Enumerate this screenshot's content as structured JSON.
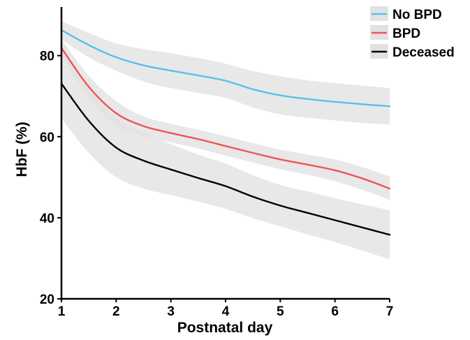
{
  "chart_data": {
    "type": "line",
    "title": "",
    "xlabel": "Postnatal day",
    "ylabel": "HbF (%)",
    "xlim": [
      1,
      7
    ],
    "ylim": [
      20,
      92
    ],
    "x_ticks": [
      1,
      2,
      3,
      4,
      5,
      6,
      7
    ],
    "y_ticks": [
      20,
      40,
      60,
      80
    ],
    "grid": false,
    "legend_position": "top-right",
    "x": [
      1,
      1.5,
      2,
      2.5,
      3,
      3.5,
      4,
      4.5,
      5,
      5.5,
      6,
      6.5,
      7
    ],
    "series": [
      {
        "name": "No BPD",
        "color": "#56C1EA",
        "values": [
          86.3,
          82.6,
          79.6,
          77.6,
          76.3,
          75.1,
          73.8,
          71.7,
          70.2,
          69.3,
          68.6,
          68.0,
          67.5
        ],
        "ci_lower": [
          84.0,
          79.6,
          76.3,
          73.6,
          72.0,
          70.8,
          69.6,
          67.2,
          65.5,
          64.7,
          64.0,
          63.4,
          63.0
        ],
        "ci_upper": [
          88.5,
          85.6,
          83.0,
          81.6,
          80.6,
          79.4,
          78.0,
          76.2,
          74.9,
          73.9,
          73.2,
          72.6,
          72.0
        ]
      },
      {
        "name": "BPD",
        "color": "#F05454",
        "values": [
          81.9,
          72.3,
          65.8,
          62.6,
          60.9,
          59.4,
          57.7,
          56.0,
          54.4,
          53.1,
          51.7,
          49.7,
          47.2
        ],
        "ci_lower": [
          79.8,
          69.6,
          62.8,
          60.2,
          58.6,
          57.1,
          55.3,
          53.6,
          52.0,
          50.6,
          49.0,
          46.9,
          44.4
        ],
        "ci_upper": [
          84.0,
          75.0,
          68.8,
          65.0,
          63.2,
          61.7,
          60.1,
          58.4,
          56.8,
          55.6,
          54.4,
          52.5,
          50.2
        ]
      },
      {
        "name": "Deceased",
        "color": "#000000",
        "values": [
          73.1,
          63.9,
          57.3,
          54.1,
          51.9,
          49.8,
          47.8,
          45.2,
          43.0,
          41.2,
          39.4,
          37.6,
          35.8
        ],
        "ci_lower": [
          64.5,
          56.0,
          50.0,
          47.2,
          45.6,
          44.0,
          42.2,
          39.9,
          37.9,
          35.9,
          34.0,
          31.9,
          29.7
        ],
        "ci_upper": [
          81.7,
          71.8,
          64.6,
          61.0,
          58.2,
          55.6,
          53.4,
          50.5,
          48.1,
          46.5,
          44.8,
          43.3,
          41.9
        ]
      }
    ]
  },
  "colors": {
    "ci_band": "#E2E2E2",
    "axis": "#000000"
  }
}
